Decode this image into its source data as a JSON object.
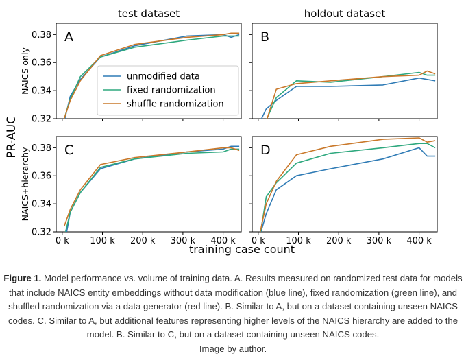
{
  "chart_data": {
    "type": "line",
    "ylabel": "PR-AUC",
    "xlabel": "training case count",
    "col_titles": [
      "test dataset",
      "holdout dataset"
    ],
    "row_labels": [
      "NAICS only",
      "NAICS+hierarchy"
    ],
    "xlim": [
      -15,
      445
    ],
    "ylim": [
      0.32,
      0.388
    ],
    "xticks": [
      0,
      100,
      200,
      300,
      400
    ],
    "xtick_labels": [
      "0 k",
      "100 k",
      "200 k",
      "300 k",
      "400 k"
    ],
    "yticks": [
      0.32,
      0.34,
      0.36,
      0.38
    ],
    "ytick_labels": [
      "0.32",
      "0.34",
      "0.36",
      "0.38"
    ],
    "legend": {
      "panel": "A",
      "position": "lower-right",
      "entries": [
        "unmodified data",
        "fixed randomization",
        "shuffle randomization"
      ]
    },
    "colors": {
      "unmodified data": "#2f7bb5",
      "fixed randomization": "#2ea87e",
      "shuffle randomization": "#c9782a"
    },
    "panels": [
      {
        "label": "A",
        "series": [
          {
            "name": "unmodified data",
            "x": [
              5,
              20,
              45,
              95,
              180,
              310,
              400,
              420,
              440
            ],
            "y": [
              0.318,
              0.336,
              0.348,
              0.364,
              0.372,
              0.379,
              0.38,
              0.378,
              0.38
            ]
          },
          {
            "name": "fixed randomization",
            "x": [
              5,
              20,
              45,
              95,
              180,
              310,
              400,
              420,
              440
            ],
            "y": [
              0.32,
              0.334,
              0.35,
              0.364,
              0.371,
              0.376,
              0.379,
              0.379,
              0.379
            ]
          },
          {
            "name": "shuffle randomization",
            "x": [
              5,
              20,
              45,
              95,
              180,
              310,
              400,
              420,
              440
            ],
            "y": [
              0.32,
              0.333,
              0.347,
              0.365,
              0.373,
              0.378,
              0.38,
              0.381,
              0.381
            ]
          }
        ]
      },
      {
        "label": "B",
        "series": [
          {
            "name": "unmodified data",
            "x": [
              5,
              20,
              45,
              95,
              180,
              310,
              400,
              420,
              440
            ],
            "y": [
              0.318,
              0.327,
              0.333,
              0.343,
              0.343,
              0.344,
              0.349,
              0.348,
              0.347
            ]
          },
          {
            "name": "fixed randomization",
            "x": [
              5,
              20,
              45,
              95,
              180,
              310,
              400,
              420,
              440
            ],
            "y": [
              0.312,
              0.319,
              0.335,
              0.347,
              0.346,
              0.35,
              0.353,
              0.351,
              0.351
            ]
          },
          {
            "name": "shuffle randomization",
            "x": [
              5,
              20,
              45,
              95,
              180,
              310,
              400,
              420,
              440
            ],
            "y": [
              0.31,
              0.318,
              0.341,
              0.345,
              0.347,
              0.35,
              0.351,
              0.354,
              0.352
            ]
          }
        ]
      },
      {
        "label": "C",
        "series": [
          {
            "name": "unmodified data",
            "x": [
              5,
              20,
              45,
              95,
              180,
              310,
              400,
              420,
              440
            ],
            "y": [
              0.31,
              0.334,
              0.348,
              0.365,
              0.372,
              0.377,
              0.379,
              0.381,
              0.381
            ]
          },
          {
            "name": "fixed randomization",
            "x": [
              5,
              20,
              45,
              95,
              180,
              310,
              400,
              420,
              440
            ],
            "y": [
              0.316,
              0.334,
              0.348,
              0.366,
              0.372,
              0.376,
              0.377,
              0.379,
              0.379
            ]
          },
          {
            "name": "shuffle randomization",
            "x": [
              5,
              20,
              45,
              95,
              180,
              310,
              400,
              420,
              440
            ],
            "y": [
              0.324,
              0.336,
              0.35,
              0.368,
              0.373,
              0.377,
              0.38,
              0.38,
              0.378
            ]
          }
        ]
      },
      {
        "label": "D",
        "series": [
          {
            "name": "unmodified data",
            "x": [
              5,
              20,
              45,
              95,
              180,
              310,
              400,
              420,
              440
            ],
            "y": [
              0.318,
              0.333,
              0.35,
              0.36,
              0.365,
              0.372,
              0.38,
              0.374,
              0.374
            ]
          },
          {
            "name": "fixed randomization",
            "x": [
              5,
              20,
              45,
              95,
              180,
              310,
              400,
              420,
              440
            ],
            "y": [
              0.318,
              0.345,
              0.355,
              0.369,
              0.376,
              0.38,
              0.383,
              0.383,
              0.38
            ]
          },
          {
            "name": "shuffle randomization",
            "x": [
              5,
              20,
              45,
              95,
              180,
              310,
              400,
              420,
              440
            ],
            "y": [
              0.32,
              0.34,
              0.356,
              0.375,
              0.381,
              0.386,
              0.387,
              0.384,
              0.385
            ]
          }
        ]
      }
    ]
  },
  "caption": {
    "label": "Figure 1.",
    "text": " Model performance vs. volume of training data. A. Results measured on randomized test data for models that include NAICS entity embeddings without data modification (blue line), fixed randomization (green line), and shuffled randomization via a data generator (red line). B. Similar to A, but on a dataset containing unseen NAICS codes. C. Similar to A, but additional features representing higher levels of the NAICS hierarchy are added to the model. B. Similar to C, but on a dataset containing unseen NAICS codes.",
    "credit": "Image by author."
  }
}
